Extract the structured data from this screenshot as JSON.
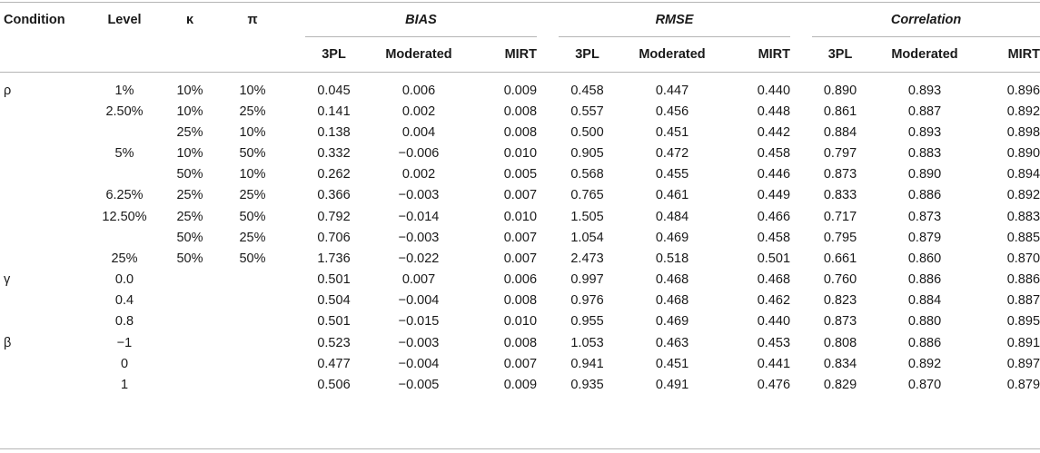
{
  "headers": {
    "condition": "Condition",
    "level": "Level",
    "kappa": "κ",
    "pi": "π",
    "groups": [
      "BIAS",
      "RMSE",
      "Correlation"
    ],
    "sub": [
      "3PL",
      "Moderated",
      "MIRT"
    ]
  },
  "rows": [
    {
      "condition": "ρ",
      "level": "1%",
      "kappa": "10%",
      "pi": "10%",
      "vals": [
        "0.045",
        "0.006",
        "0.009",
        "0.458",
        "0.447",
        "0.440",
        "0.890",
        "0.893",
        "0.896"
      ]
    },
    {
      "condition": "",
      "level": "2.50%",
      "kappa": "10%",
      "pi": "25%",
      "vals": [
        "0.141",
        "0.002",
        "0.008",
        "0.557",
        "0.456",
        "0.448",
        "0.861",
        "0.887",
        "0.892"
      ]
    },
    {
      "condition": "",
      "level": "",
      "kappa": "25%",
      "pi": "10%",
      "vals": [
        "0.138",
        "0.004",
        "0.008",
        "0.500",
        "0.451",
        "0.442",
        "0.884",
        "0.893",
        "0.898"
      ]
    },
    {
      "condition": "",
      "level": "5%",
      "kappa": "10%",
      "pi": "50%",
      "vals": [
        "0.332",
        "−0.006",
        "0.010",
        "0.905",
        "0.472",
        "0.458",
        "0.797",
        "0.883",
        "0.890"
      ]
    },
    {
      "condition": "",
      "level": "",
      "kappa": "50%",
      "pi": "10%",
      "vals": [
        "0.262",
        "0.002",
        "0.005",
        "0.568",
        "0.455",
        "0.446",
        "0.873",
        "0.890",
        "0.894"
      ]
    },
    {
      "condition": "",
      "level": "6.25%",
      "kappa": "25%",
      "pi": "25%",
      "vals": [
        "0.366",
        "−0.003",
        "0.007",
        "0.765",
        "0.461",
        "0.449",
        "0.833",
        "0.886",
        "0.892"
      ]
    },
    {
      "condition": "",
      "level": "12.50%",
      "kappa": "25%",
      "pi": "50%",
      "vals": [
        "0.792",
        "−0.014",
        "0.010",
        "1.505",
        "0.484",
        "0.466",
        "0.717",
        "0.873",
        "0.883"
      ]
    },
    {
      "condition": "",
      "level": "",
      "kappa": "50%",
      "pi": "25%",
      "vals": [
        "0.706",
        "−0.003",
        "0.007",
        "1.054",
        "0.469",
        "0.458",
        "0.795",
        "0.879",
        "0.885"
      ]
    },
    {
      "condition": "",
      "level": "25%",
      "kappa": "50%",
      "pi": "50%",
      "vals": [
        "1.736",
        "−0.022",
        "0.007",
        "2.473",
        "0.518",
        "0.501",
        "0.661",
        "0.860",
        "0.870"
      ]
    },
    {
      "condition": "γ",
      "level": "0.0",
      "kappa": "",
      "pi": "",
      "vals": [
        "0.501",
        "0.007",
        "0.006",
        "0.997",
        "0.468",
        "0.468",
        "0.760",
        "0.886",
        "0.886"
      ]
    },
    {
      "condition": "",
      "level": "0.4",
      "kappa": "",
      "pi": "",
      "vals": [
        "0.504",
        "−0.004",
        "0.008",
        "0.976",
        "0.468",
        "0.462",
        "0.823",
        "0.884",
        "0.887"
      ]
    },
    {
      "condition": "",
      "level": "0.8",
      "kappa": "",
      "pi": "",
      "vals": [
        "0.501",
        "−0.015",
        "0.010",
        "0.955",
        "0.469",
        "0.440",
        "0.873",
        "0.880",
        "0.895"
      ]
    },
    {
      "condition": "β",
      "level": "−1",
      "kappa": "",
      "pi": "",
      "vals": [
        "0.523",
        "−0.003",
        "0.008",
        "1.053",
        "0.463",
        "0.453",
        "0.808",
        "0.886",
        "0.891"
      ]
    },
    {
      "condition": "",
      "level": "0",
      "kappa": "",
      "pi": "",
      "vals": [
        "0.477",
        "−0.004",
        "0.007",
        "0.941",
        "0.451",
        "0.441",
        "0.834",
        "0.892",
        "0.897"
      ]
    },
    {
      "condition": "",
      "level": "1",
      "kappa": "",
      "pi": "",
      "vals": [
        "0.506",
        "−0.005",
        "0.009",
        "0.935",
        "0.491",
        "0.476",
        "0.829",
        "0.870",
        "0.879"
      ]
    }
  ]
}
